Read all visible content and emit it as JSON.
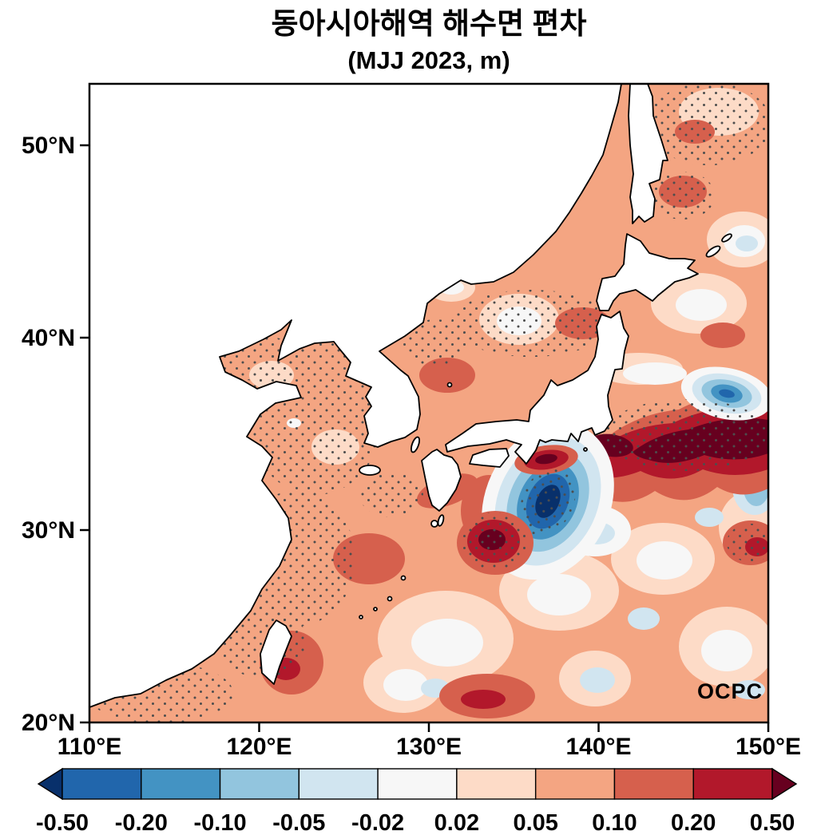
{
  "figure": {
    "title": "동아시아해역 해수면 편차",
    "subtitle": "(MJJ 2023, m)",
    "logo": "OCPC"
  },
  "axis_tick_labels": {
    "x": [
      "110°E",
      "120°E",
      "130°E",
      "140°E",
      "150°E"
    ],
    "y": [
      "20°N",
      "30°N",
      "40°N",
      "50°N"
    ]
  },
  "chart_data": {
    "type": "heatmap",
    "variable": "sea level (sea surface height) anomaly",
    "units": "m",
    "period": "MJJ 2023",
    "region": "East Asian seas",
    "x_axis": {
      "range_deg_east": [
        110,
        150
      ],
      "ticks": [
        110,
        120,
        130,
        140,
        150
      ]
    },
    "y_axis": {
      "range_deg_north": [
        20,
        53.2
      ],
      "ticks": [
        20,
        30,
        40,
        50
      ]
    },
    "colorbar": {
      "orientation": "horizontal",
      "extend": "both",
      "levels": [
        "-0.50",
        "-0.20",
        "-0.10",
        "-0.05",
        "-0.02",
        "0.02",
        "0.05",
        "0.10",
        "0.20",
        "0.50"
      ],
      "colors": [
        "#08306b",
        "#2166ac",
        "#4393c3",
        "#92c5de",
        "#d1e5f0",
        "#f7f7f7",
        "#fddbc7",
        "#f4a582",
        "#d6604d",
        "#b2182b",
        "#67001f"
      ]
    },
    "field_summary": {
      "dominant_value_range_m": "0.02 to 0.10 (light red/salmon) over most marginal seas",
      "stippled_dot_regions": [
        "Bohai/Yellow Sea/East China Sea",
        "Sea of Japan interior",
        "Kuroshio Extension band",
        "cold eddy south of Japan",
        "area northeast of Sakhalin",
        "southwest corner near 110-115E 20-22N"
      ]
    },
    "features": [
      {
        "name": "kuroshio-extension-warm-band",
        "lon_range": [
          138,
          150
        ],
        "lat_range": [
          34,
          36.5
        ],
        "value_m": "> 0.50",
        "sign": "positive"
      },
      {
        "name": "cold-eddy-south-of-japan",
        "lon": 137,
        "lat": 32,
        "value_m": "< -0.50",
        "sign": "negative"
      },
      {
        "name": "warm-core-ring-133-135E-30N",
        "lon": 134.8,
        "lat": 29.8,
        "value_m": "> 0.50",
        "sign": "positive"
      },
      {
        "name": "cold-anomaly-147E-37N",
        "lon": 147.5,
        "lat": 37,
        "value_m": "-0.20 to -0.50",
        "sign": "negative"
      },
      {
        "name": "coastal-warm-patch-kii",
        "lon": 137,
        "lat": 33.6,
        "value_m": "> 0.50",
        "sign": "positive"
      }
    ]
  }
}
